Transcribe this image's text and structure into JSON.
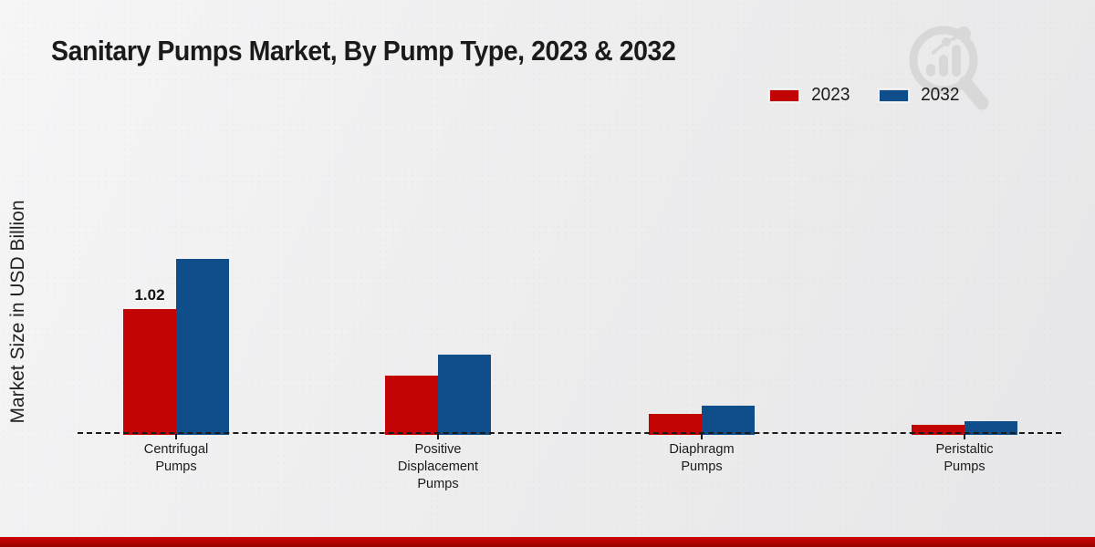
{
  "title": "Sanitary Pumps Market, By Pump Type, 2023 & 2032",
  "chart_data": {
    "type": "bar",
    "title": "Sanitary Pumps Market, By Pump Type, 2023 & 2032",
    "ylabel": "Market Size in USD Billion",
    "xlabel": "",
    "categories": [
      "Centrifugal\nPumps",
      "Positive\nDisplacement\nPumps",
      "Diaphragm\nPumps",
      "Peristaltic\nPumps"
    ],
    "series": [
      {
        "name": "2023",
        "color": "#c30404",
        "values": [
          1.02,
          0.48,
          0.17,
          0.08
        ]
      },
      {
        "name": "2032",
        "color": "#0f4e8b",
        "values": [
          1.43,
          0.65,
          0.24,
          0.11
        ]
      }
    ],
    "value_labels": [
      {
        "series": 0,
        "index": 0,
        "text": "1.02"
      }
    ],
    "ylim": [
      0,
      1.6
    ],
    "grid": false,
    "axis_style": "dashed-baseline",
    "legend_position": "top-right"
  },
  "colors": {
    "accent_red": "#c30404",
    "accent_blue": "#0f4e8b",
    "footer_stripe_top": "#d00606",
    "footer_stripe_bottom": "#960202",
    "watermark_gray": "#d8d8d8"
  },
  "watermark_name": "magnifier-bar-chart-logo"
}
